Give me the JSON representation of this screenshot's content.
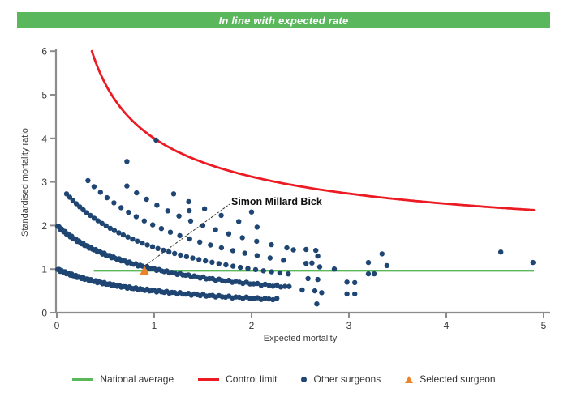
{
  "banner": {
    "title": "In line with expected rate",
    "bg_color": "#5BB75C"
  },
  "chart_data": {
    "type": "scatter",
    "title": "",
    "xlabel": "Expected mortality",
    "ylabel": "Standardised mortality ratio",
    "xlim": [
      0,
      5
    ],
    "ylim": [
      0,
      6
    ],
    "x_ticks": [
      0,
      1,
      2,
      3,
      4,
      5
    ],
    "y_ticks": [
      0,
      1,
      2,
      3,
      4,
      5,
      6
    ],
    "grid": false,
    "national_average": {
      "value": 1,
      "x_start": 0.38,
      "x_end": 4.9,
      "color": "#5AB85A"
    },
    "control_limit": {
      "formula": "smr = 1 + 3/sqrt(expected)",
      "x_start": 0.36,
      "x_end": 4.9,
      "color": "#EC1B23"
    },
    "other_surgeons": {
      "color": "#1F4573",
      "band_formula": "smr = deaths / (1 + expected)",
      "bands": [
        {
          "n": 1,
          "x_start": 0.01,
          "x_end": 2.3,
          "step_base": 0.012,
          "step_growth": 0.013
        },
        {
          "n": 2,
          "x_start": 0.01,
          "x_end": 2.4,
          "step_base": 0.012,
          "step_growth": 0.013
        },
        {
          "n": 3,
          "x_start": 0.1,
          "x_end": 2.4,
          "step_base": 0.03,
          "step_growth": 0.025
        },
        {
          "n": 4,
          "x_start": 0.32,
          "x_end": 2.42,
          "step_base": 0.05,
          "step_growth": 0.04
        },
        {
          "n": 5,
          "x_start": 0.72,
          "x_end": 2.42,
          "step_base": 0.07,
          "step_growth": 0.04
        },
        {
          "n": 6,
          "x_start": 1.2,
          "x_end": 2.2,
          "step_base": 0.095,
          "step_growth": 0.05
        }
      ],
      "points": [
        [
          1.02,
          3.96
        ],
        [
          0.72,
          3.47
        ],
        [
          1.36,
          2.34
        ],
        [
          2.0,
          2.31
        ],
        [
          2.43,
          1.44
        ],
        [
          2.56,
          1.45
        ],
        [
          2.66,
          1.43
        ],
        [
          2.68,
          1.3
        ],
        [
          2.56,
          1.13
        ],
        [
          2.62,
          1.14
        ],
        [
          2.7,
          1.05
        ],
        [
          2.85,
          1.0
        ],
        [
          2.58,
          0.78
        ],
        [
          2.68,
          0.76
        ],
        [
          2.52,
          0.52
        ],
        [
          2.65,
          0.5
        ],
        [
          2.72,
          0.46
        ],
        [
          2.67,
          0.2
        ],
        [
          2.98,
          0.7
        ],
        [
          3.06,
          0.69
        ],
        [
          2.98,
          0.43
        ],
        [
          3.06,
          0.43
        ],
        [
          3.2,
          1.15
        ],
        [
          3.34,
          1.35
        ],
        [
          3.39,
          1.08
        ],
        [
          3.2,
          0.89
        ],
        [
          3.26,
          0.89
        ],
        [
          4.56,
          1.39
        ],
        [
          4.89,
          1.15
        ]
      ]
    },
    "selected_surgeon": {
      "x": 0.9,
      "y": 1.0,
      "color": "#EF8227",
      "label": "Simon Millard Bick"
    }
  },
  "legend": {
    "items": [
      {
        "label": "National average",
        "swatch": "line",
        "color": "#5AB85A"
      },
      {
        "label": "Control limit",
        "swatch": "line",
        "color": "#EC1B23"
      },
      {
        "label": "Other surgeons",
        "swatch": "dot",
        "color": "#1F4573"
      },
      {
        "label": "Selected surgeon",
        "swatch": "triangle",
        "color": "#EF8227"
      }
    ]
  }
}
